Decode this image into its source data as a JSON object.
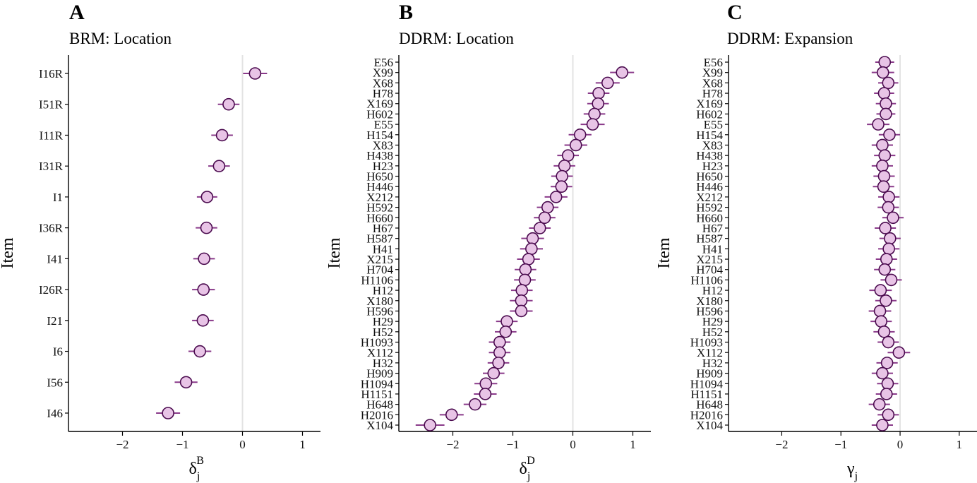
{
  "chart_data": [
    {
      "type": "scatter",
      "panel_label": "A",
      "title": "BRM: Location",
      "xlabel_base": "δ",
      "xlabel_sub": "j",
      "xlabel_sup": "B",
      "ylabel": "Item",
      "xlim": [
        -2.9,
        1.3
      ],
      "xticks": [
        -2,
        -1,
        0,
        1
      ],
      "xtick_labels": [
        "−2",
        "−1",
        "0",
        "1"
      ],
      "items": [
        "I16R",
        "I51R",
        "I11R",
        "I31R",
        "I1",
        "I36R",
        "I41",
        "I26R",
        "I21",
        "I6",
        "I56",
        "I46"
      ],
      "estimates": [
        0.21,
        -0.23,
        -0.34,
        -0.39,
        -0.59,
        -0.6,
        -0.64,
        -0.65,
        -0.66,
        -0.71,
        -0.94,
        -1.24
      ],
      "ci_low": [
        0.01,
        -0.41,
        -0.52,
        -0.57,
        -0.76,
        -0.78,
        -0.82,
        -0.84,
        -0.84,
        -0.9,
        -1.13,
        -1.44
      ],
      "ci_high": [
        0.41,
        -0.05,
        -0.16,
        -0.21,
        -0.42,
        -0.42,
        -0.46,
        -0.46,
        -0.48,
        -0.52,
        -0.75,
        -1.04
      ]
    },
    {
      "type": "scatter",
      "panel_label": "B",
      "title": "DDRM: Location",
      "xlabel_base": "δ",
      "xlabel_sub": "j",
      "xlabel_sup": "D",
      "ylabel": "Item",
      "xlim": [
        -2.9,
        1.3
      ],
      "xticks": [
        -2,
        -1,
        0,
        1
      ],
      "xtick_labels": [
        "−2",
        "−1",
        "0",
        "1"
      ],
      "items": [
        "E56",
        "X99",
        "X68",
        "H78",
        "X169",
        "H602",
        "E55",
        "H154",
        "X83",
        "H438",
        "H23",
        "H650",
        "H446",
        "X212",
        "H592",
        "H660",
        "H67",
        "H587",
        "H41",
        "X215",
        "H704",
        "H1106",
        "H12",
        "X180",
        "H596",
        "H29",
        "H52",
        "H1093",
        "X112",
        "H32",
        "H909",
        "H1094",
        "H1151",
        "H648",
        "H2016",
        "X104"
      ],
      "estimates": [
        null,
        0.82,
        0.58,
        0.43,
        0.42,
        0.36,
        0.33,
        0.12,
        0.05,
        -0.08,
        -0.14,
        -0.18,
        -0.19,
        -0.28,
        -0.42,
        -0.47,
        -0.55,
        -0.67,
        -0.69,
        -0.74,
        -0.79,
        -0.8,
        -0.85,
        -0.86,
        -0.86,
        -1.1,
        -1.12,
        -1.22,
        -1.22,
        -1.24,
        -1.32,
        -1.45,
        -1.46,
        -1.63,
        -2.02,
        -2.38
      ],
      "ci_low": [
        null,
        0.62,
        0.38,
        0.25,
        0.24,
        0.18,
        0.13,
        -0.07,
        -0.14,
        -0.26,
        -0.32,
        -0.36,
        -0.37,
        -0.47,
        -0.6,
        -0.65,
        -0.73,
        -0.86,
        -0.88,
        -0.93,
        -0.97,
        -0.98,
        -1.03,
        -1.05,
        -1.05,
        -1.28,
        -1.3,
        -1.4,
        -1.4,
        -1.42,
        -1.5,
        -1.64,
        -1.65,
        -1.82,
        -2.22,
        -2.62
      ],
      "ci_high": [
        null,
        1.02,
        0.78,
        0.61,
        0.6,
        0.54,
        0.53,
        0.31,
        0.24,
        0.1,
        0.04,
        0.0,
        -0.01,
        -0.09,
        -0.24,
        -0.29,
        -0.37,
        -0.48,
        -0.5,
        -0.55,
        -0.61,
        -0.62,
        -0.67,
        -0.67,
        -0.67,
        -0.92,
        -0.94,
        -1.04,
        -1.04,
        -1.06,
        -1.14,
        -1.26,
        -1.27,
        -1.44,
        -1.82,
        -2.14
      ]
    },
    {
      "type": "scatter",
      "panel_label": "C",
      "title": "DDRM: Expansion",
      "xlabel_base": "γ",
      "xlabel_sub": "j",
      "xlabel_sup": "",
      "ylabel": "Item",
      "xlim": [
        -2.9,
        1.3
      ],
      "xticks": [
        -2,
        -1,
        0,
        1
      ],
      "xtick_labels": [
        "−2",
        "−1",
        "0",
        "1"
      ],
      "items": [
        "E56",
        "X99",
        "X68",
        "H78",
        "X169",
        "H602",
        "E55",
        "H154",
        "X83",
        "H438",
        "H23",
        "H650",
        "H446",
        "X212",
        "H592",
        "H660",
        "H67",
        "H587",
        "H41",
        "X215",
        "H704",
        "H1106",
        "H12",
        "X180",
        "H596",
        "H29",
        "H52",
        "H1093",
        "X112",
        "H32",
        "H909",
        "H1094",
        "H1151",
        "H648",
        "H2016",
        "X104"
      ],
      "estimates": [
        -0.26,
        -0.29,
        -0.2,
        -0.27,
        -0.24,
        -0.24,
        -0.37,
        -0.18,
        -0.3,
        -0.26,
        -0.3,
        -0.27,
        -0.28,
        -0.19,
        -0.2,
        -0.12,
        -0.25,
        -0.17,
        -0.19,
        -0.23,
        -0.26,
        -0.15,
        -0.33,
        -0.24,
        -0.34,
        -0.32,
        -0.27,
        -0.2,
        -0.02,
        -0.22,
        -0.3,
        -0.21,
        -0.23,
        -0.35,
        -0.2,
        -0.3
      ],
      "ci_low": [
        -0.42,
        -0.48,
        -0.37,
        -0.44,
        -0.41,
        -0.4,
        -0.56,
        -0.36,
        -0.48,
        -0.44,
        -0.48,
        -0.45,
        -0.46,
        -0.37,
        -0.38,
        -0.3,
        -0.43,
        -0.35,
        -0.37,
        -0.41,
        -0.44,
        -0.33,
        -0.52,
        -0.42,
        -0.53,
        -0.5,
        -0.45,
        -0.38,
        -0.21,
        -0.4,
        -0.48,
        -0.39,
        -0.41,
        -0.53,
        -0.38,
        -0.48
      ],
      "ci_high": [
        -0.1,
        -0.1,
        -0.03,
        -0.1,
        -0.07,
        -0.08,
        -0.18,
        0.0,
        -0.12,
        -0.08,
        -0.12,
        -0.09,
        -0.1,
        -0.01,
        -0.02,
        0.06,
        -0.07,
        0.01,
        -0.01,
        -0.05,
        -0.08,
        0.03,
        -0.14,
        -0.06,
        -0.15,
        -0.14,
        -0.09,
        -0.02,
        0.17,
        -0.04,
        -0.12,
        -0.03,
        -0.05,
        -0.17,
        -0.02,
        -0.12
      ]
    }
  ]
}
